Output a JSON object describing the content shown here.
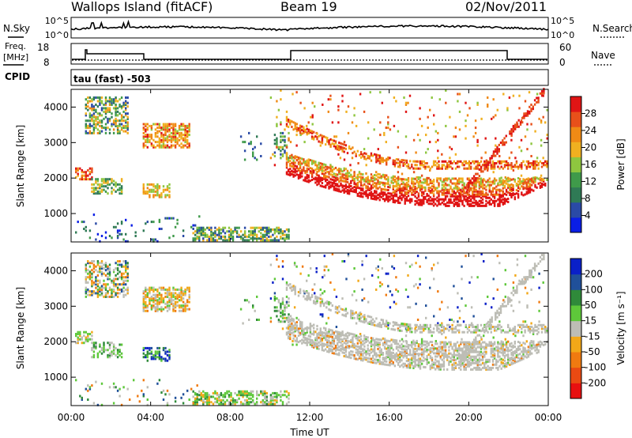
{
  "header": {
    "station": "Wallops Island (fitACF)",
    "beam": "Beam 19",
    "date": "02/Nov/2011"
  },
  "noise_panel": {
    "left_label": "N.Sky",
    "right_label": "N.Search",
    "ticks": [
      "10^5",
      "10^0"
    ]
  },
  "freq_panel": {
    "left_label_1": "Freq.",
    "left_label_2": "[MHz]",
    "right_label": "Nave",
    "left_ticks": [
      "18",
      "8"
    ],
    "right_ticks": [
      "60",
      "0"
    ]
  },
  "cpid": {
    "label": "CPID",
    "value": "tau (fast) -503"
  },
  "colors": {
    "power": [
      "#0a1ee6",
      "#2a4aa6",
      "#2f7a55",
      "#3f9a4a",
      "#8ec63f",
      "#f0b020",
      "#f08a15",
      "#e8501a",
      "#e01515"
    ],
    "velocity": [
      "#e81010",
      "#ea4a12",
      "#f07a10",
      "#f2a818",
      "#bdbdb5",
      "#5ec83a",
      "#2f8a3a",
      "#20509a",
      "#0a20c8"
    ]
  },
  "chart_data": [
    {
      "type": "heatmap",
      "name_hint": "power",
      "xlabel": "Time UT",
      "ylabel": "Slant Range [km]",
      "xlim": [
        0,
        24
      ],
      "ylim": [
        200,
        4500
      ],
      "x_ticks": [
        "00:00",
        "04:00",
        "08:00",
        "12:00",
        "16:00",
        "20:00",
        "00:00"
      ],
      "y_ticks": [
        "1000",
        "2000",
        "3000",
        "4000"
      ],
      "colorbar": {
        "label": "Power [dB]",
        "range": [
          0,
          32
        ],
        "ticks": [
          "4",
          "8",
          "12",
          "16",
          "20",
          "24",
          "28"
        ]
      }
    },
    {
      "type": "heatmap",
      "name_hint": "velocity",
      "xlabel": "Time UT",
      "ylabel": "Slant Range [km]",
      "xlim": [
        0,
        24
      ],
      "ylim": [
        200,
        4500
      ],
      "x_ticks": [
        "00:00",
        "04:00",
        "08:00",
        "12:00",
        "16:00",
        "20:00",
        "00:00"
      ],
      "y_ticks": [
        "1000",
        "2000",
        "3000",
        "4000"
      ],
      "colorbar": {
        "label": "Velocity [m s⁻¹]",
        "ticks": [
          "200",
          "100",
          "50",
          "15",
          "-15",
          "-50",
          "-100",
          "-200"
        ]
      }
    }
  ]
}
